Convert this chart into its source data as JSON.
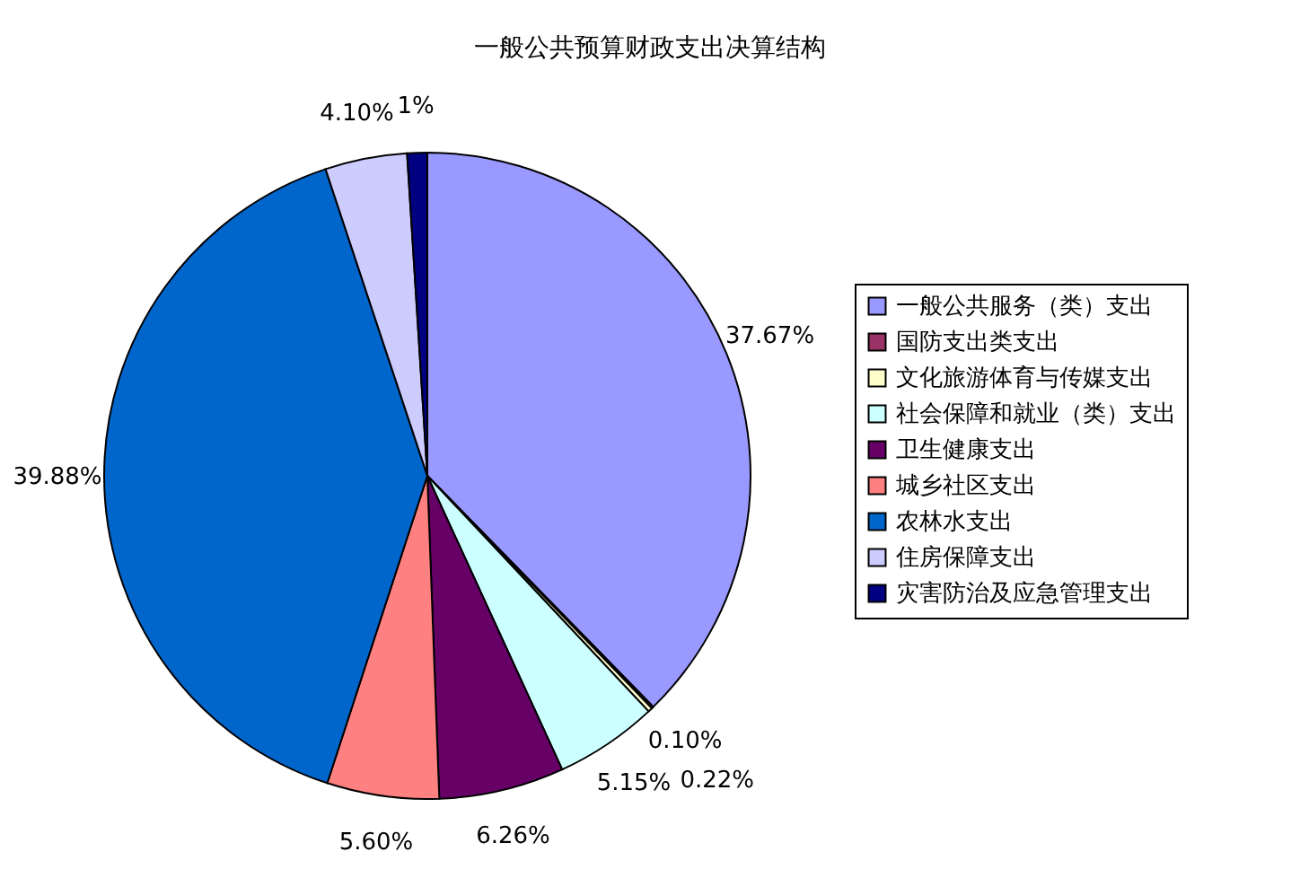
{
  "chart_data": {
    "type": "pie",
    "title": "一般公共预算财政支出决算结构",
    "categories": [
      "一般公共服务（类）支出",
      "国防支出类支出",
      "文化旅游体育与传媒支出",
      "社会保障和就业（类）支出",
      "卫生健康支出",
      "城乡社区支出",
      "农林水支出",
      "住房保障支出",
      "灾害防治及应急管理支出"
    ],
    "values": [
      37.67,
      0.1,
      0.22,
      5.15,
      6.26,
      5.6,
      39.88,
      4.1,
      1
    ],
    "value_labels": [
      "37.67%",
      "0.10%",
      "0.22%",
      "5.15%",
      "6.26%",
      "5.60%",
      "39.88%",
      "4.10%",
      "1%"
    ],
    "colors": [
      "#9999ff",
      "#993366",
      "#ffffcc",
      "#ccffff",
      "#660066",
      "#ff8080",
      "#0066cc",
      "#ccccff",
      "#000080"
    ],
    "legend": "right"
  }
}
